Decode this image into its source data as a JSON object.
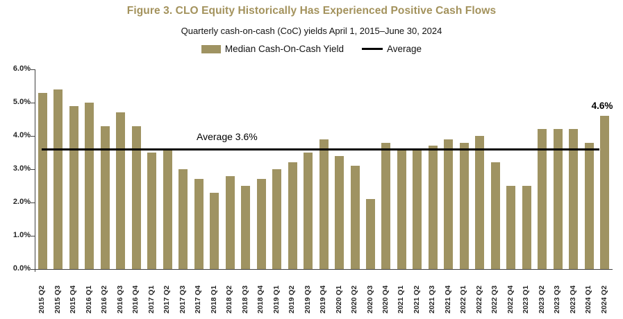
{
  "header": {
    "title": "Figure 3. CLO Equity Historically Has Experienced Positive Cash Flows",
    "subtitle": "Quarterly cash-on-cash (CoC) yields April 1, 2015–June 30, 2024"
  },
  "legend": {
    "bar_label": "Median Cash-On-Cash Yield",
    "line_label": "Average"
  },
  "colors": {
    "bar": "#9f9362",
    "title": "#a3925c",
    "average_line": "#000000",
    "axis": "#404040"
  },
  "chart_data": {
    "type": "bar",
    "title": "Figure 3. CLO Equity Historically Has Experienced Positive Cash Flows",
    "subtitle": "Quarterly cash-on-cash (CoC) yields April 1, 2015–June 30, 2024",
    "series_name": "Median Cash-On-Cash Yield",
    "categories": [
      "2015 Q2",
      "2015 Q3",
      "2015 Q4",
      "2016 Q1",
      "2016 Q2",
      "2016 Q3",
      "2016 Q4",
      "2017 Q1",
      "2017 Q2",
      "2017 Q3",
      "2017 Q4",
      "2018 Q1",
      "2018 Q2",
      "2018 Q3",
      "2018 Q4",
      "2019 Q1",
      "2019 Q2",
      "2019 Q3",
      "2019 Q4",
      "2020 Q1",
      "2020 Q2",
      "2020 Q3",
      "2020 Q4",
      "2021 Q1",
      "2021 Q2",
      "2021 Q3",
      "2021 Q4",
      "2022 Q1",
      "2022 Q2",
      "2022 Q3",
      "2022 Q4",
      "2023 Q1",
      "2023 Q2",
      "2023 Q3",
      "2023 Q4",
      "2024 Q1",
      "2024 Q2"
    ],
    "values": [
      5.3,
      5.4,
      4.9,
      5.0,
      4.3,
      4.7,
      4.3,
      3.5,
      3.6,
      3.0,
      2.7,
      2.3,
      2.8,
      2.5,
      2.7,
      3.0,
      3.2,
      3.5,
      3.9,
      3.4,
      3.1,
      2.1,
      3.8,
      3.6,
      3.6,
      3.7,
      3.9,
      3.8,
      4.0,
      3.2,
      2.5,
      2.5,
      4.2,
      4.2,
      4.2,
      3.8,
      4.6
    ],
    "average": 3.6,
    "average_label": "Average 3.6%",
    "last_bar_label": "4.6%",
    "y_ticks": [
      "0.0%",
      "1.0%",
      "2.0%",
      "3.0%",
      "4.0%",
      "5.0%",
      "6.0%"
    ],
    "ylim": [
      0,
      6
    ],
    "xlabel": "",
    "ylabel": "",
    "grid": false,
    "legend_position": "top"
  }
}
